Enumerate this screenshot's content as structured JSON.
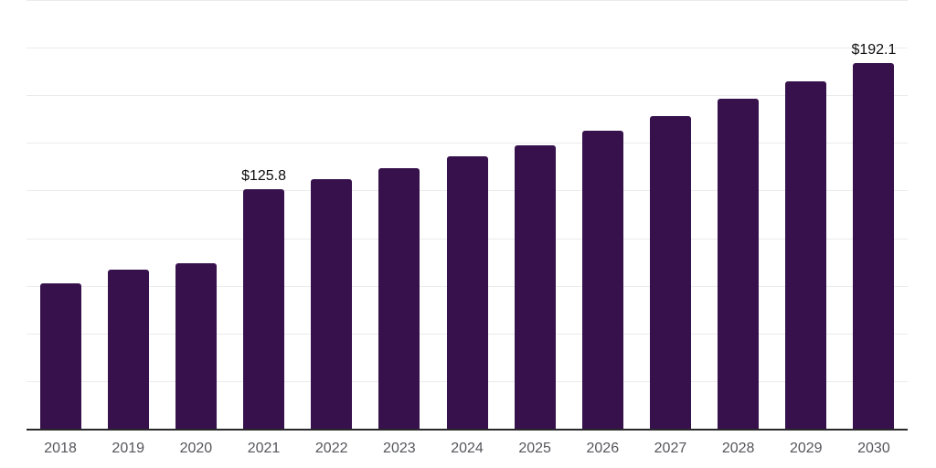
{
  "chart": {
    "background_color": "#ffffff",
    "bar_color": "#36114c",
    "grid_color": "#ebebeb",
    "axis_line_color": "#29292c",
    "tick_label_color": "#55565b",
    "value_label_color": "#0d0d0d"
  },
  "chart_data": {
    "type": "bar",
    "title": "",
    "xlabel": "",
    "ylabel": "",
    "categories": [
      "2018",
      "2019",
      "2020",
      "2021",
      "2022",
      "2023",
      "2024",
      "2025",
      "2026",
      "2027",
      "2028",
      "2029",
      "2030"
    ],
    "values": [
      76.4,
      83.6,
      87.0,
      125.8,
      130.9,
      136.5,
      142.8,
      148.8,
      156.6,
      164.3,
      173.0,
      182.2,
      192.1
    ],
    "data_labels": [
      {
        "category": "2021",
        "text": "$125.8"
      },
      {
        "category": "2030",
        "text": "$192.1"
      }
    ],
    "ylim": [
      0,
      225
    ],
    "grid_step": 25,
    "grid": "horizontal",
    "y_tick_labels_visible": false,
    "legend": "none"
  }
}
